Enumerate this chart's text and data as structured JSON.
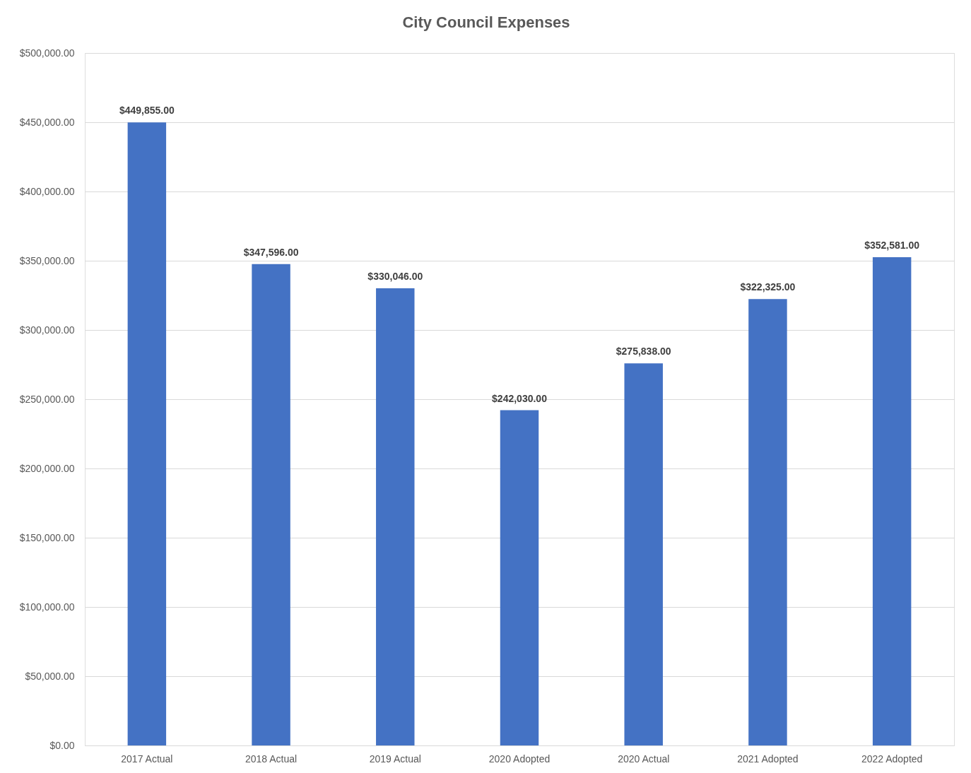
{
  "chart_data": {
    "type": "bar",
    "title": "City Council Expenses",
    "categories": [
      "2017 Actual",
      "2018 Actual",
      "2019 Actual",
      "2020 Adopted",
      "2020 Actual",
      "2021 Adopted",
      "2022 Adopted"
    ],
    "values": [
      449855,
      347596,
      330046,
      242030,
      275838,
      322325,
      352581
    ],
    "value_labels": [
      "$449,855.00",
      "$347,596.00",
      "$330,046.00",
      "$242,030.00",
      "$275,838.00",
      "$322,325.00",
      "$352,581.00"
    ],
    "color": "#4472c4",
    "ylim": [
      0,
      500000
    ],
    "yticks": [
      {
        "value": 0,
        "label": "$0.00"
      },
      {
        "value": 50000,
        "label": "$50,000.00"
      },
      {
        "value": 100000,
        "label": "$100,000.00"
      },
      {
        "value": 150000,
        "label": "$150,000.00"
      },
      {
        "value": 200000,
        "label": "$200,000.00"
      },
      {
        "value": 250000,
        "label": "$250,000.00"
      },
      {
        "value": 300000,
        "label": "$300,000.00"
      },
      {
        "value": 350000,
        "label": "$350,000.00"
      },
      {
        "value": 400000,
        "label": "$400,000.00"
      },
      {
        "value": 450000,
        "label": "$450,000.00"
      },
      {
        "value": 500000,
        "label": "$500,000.00"
      }
    ],
    "grid": "y"
  }
}
